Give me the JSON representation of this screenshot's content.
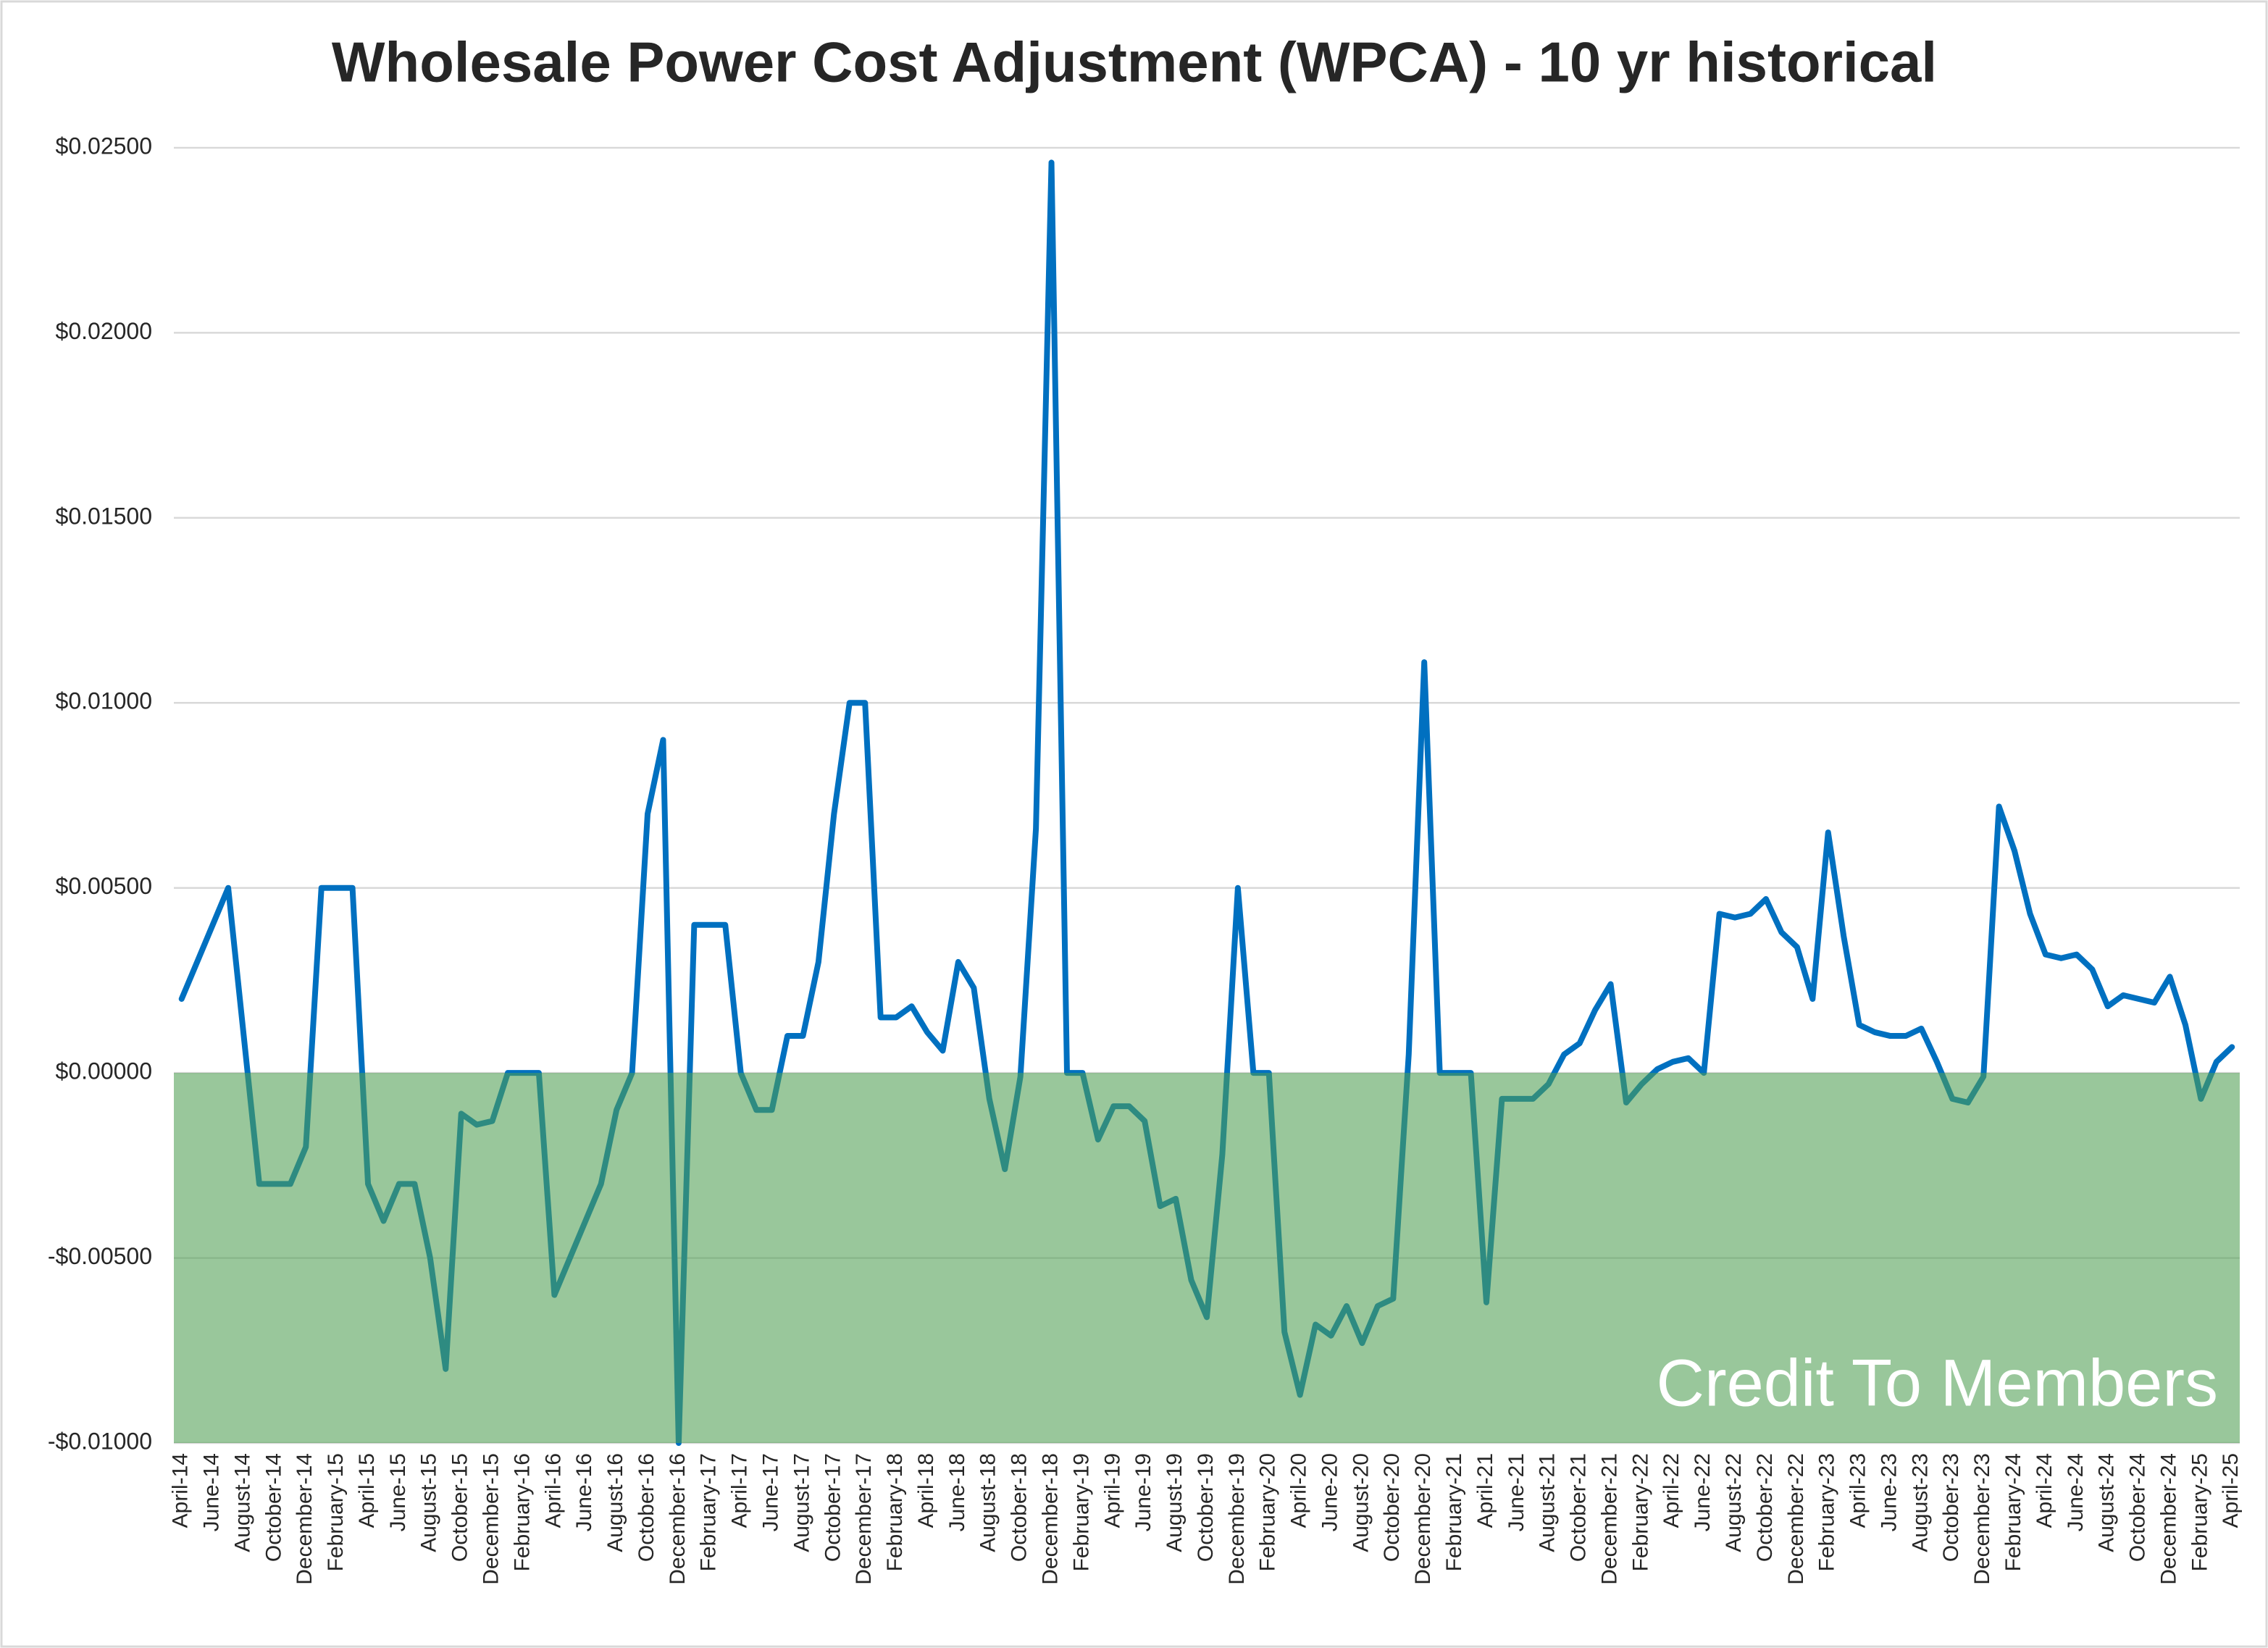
{
  "chart_data": {
    "type": "line",
    "title": "Wholesale Power Cost Adjustment (WPCA) - 10 yr historical",
    "categories": [
      "April-14",
      null,
      "June-14",
      null,
      "August-14",
      null,
      "October-14",
      null,
      "December-14",
      null,
      "February-15",
      null,
      "April-15",
      null,
      "June-15",
      null,
      "August-15",
      null,
      "October-15",
      null,
      "December-15",
      null,
      "February-16",
      null,
      "April-16",
      null,
      "June-16",
      null,
      "August-16",
      null,
      "October-16",
      null,
      "December-16",
      null,
      "February-17",
      null,
      "April-17",
      null,
      "June-17",
      null,
      "August-17",
      null,
      "October-17",
      null,
      "December-17",
      null,
      "February-18",
      null,
      "April-18",
      null,
      "June-18",
      null,
      "August-18",
      null,
      "October-18",
      null,
      "December-18",
      null,
      "February-19",
      null,
      "April-19",
      null,
      "June-19",
      null,
      "August-19",
      null,
      "October-19",
      null,
      "December-19",
      null,
      "February-20",
      null,
      "April-20",
      null,
      "June-20",
      null,
      "August-20",
      null,
      "October-20",
      null,
      "December-20",
      null,
      "February-21",
      null,
      "April-21",
      null,
      "June-21",
      null,
      "August-21",
      null,
      "October-21",
      null,
      "December-21",
      null,
      "February-22",
      null,
      "April-22",
      null,
      "June-22",
      null,
      "August-22",
      null,
      "October-22",
      null,
      "December-22",
      null,
      "February-23",
      null,
      "April-23",
      null,
      "June-23",
      null,
      "August-23",
      null,
      "October-23",
      null,
      "December-23",
      null,
      "February-24",
      null,
      "April-24",
      null,
      "June-24",
      null,
      "August-24",
      null,
      "October-24",
      null,
      "December-24",
      null,
      "February-25",
      null,
      "April-25"
    ],
    "series": [
      {
        "name": "WPCA",
        "color": "#0070c0",
        "values": [
          0.002,
          0.003,
          0.004,
          0.005,
          0.001,
          -0.003,
          -0.003,
          -0.003,
          -0.002,
          0.005,
          0.005,
          0.005,
          -0.003,
          -0.004,
          -0.003,
          -0.003,
          -0.005,
          -0.008,
          -0.0011,
          -0.0014,
          -0.0013,
          0,
          0,
          0,
          -0.006,
          -0.005,
          -0.004,
          -0.003,
          -0.001,
          0,
          0.007,
          0.009,
          -0.01,
          0.004,
          0.004,
          0.004,
          0,
          -0.001,
          -0.001,
          0.001,
          0.001,
          0.003,
          0.007,
          0.01,
          0.01,
          0.0015,
          0.0015,
          0.0018,
          0.0011,
          0.0006,
          0.003,
          0.0023,
          -0.0007,
          -0.0026,
          -0.0001,
          0.0066,
          0.0246,
          0,
          0,
          -0.0018,
          -0.0009,
          -0.0009,
          -0.0013,
          -0.0036,
          -0.0034,
          -0.0056,
          -0.0066,
          -0.0022,
          0.005,
          0,
          0,
          -0.007,
          -0.0087,
          -0.0068,
          -0.0071,
          -0.0063,
          -0.0073,
          -0.0063,
          -0.0061,
          0.0005,
          0.0111,
          0,
          0,
          0,
          -0.0062,
          -0.0007,
          -0.0007,
          -0.0007,
          -0.0003,
          0.0005,
          0.0008,
          0.0017,
          0.0024,
          -0.0008,
          -0.0003,
          0.0001,
          0.0003,
          0.0004,
          0,
          0.0043,
          0.0042,
          0.0043,
          0.0047,
          0.0038,
          0.0034,
          0.002,
          0.0065,
          0.0037,
          0.0013,
          0.0011,
          0.001,
          0.001,
          0.0012,
          0.0003,
          -0.0007,
          -0.0008,
          -0.0001,
          0.0072,
          0.006,
          0.0043,
          0.0032,
          0.0031,
          0.0032,
          0.0028,
          0.0018,
          0.0021,
          0.002,
          0.0019,
          0.0026,
          0.0013,
          -0.0007,
          0.0003,
          0.0007
        ]
      }
    ],
    "ylim": [
      -0.01,
      0.025
    ],
    "yticks": [
      {
        "value": -0.01,
        "label": "-$0.01000"
      },
      {
        "value": -0.005,
        "label": "-$0.00500"
      },
      {
        "value": 0,
        "label": "$0.00000"
      },
      {
        "value": 0.005,
        "label": "$0.00500"
      },
      {
        "value": 0.01,
        "label": "$0.01000"
      },
      {
        "value": 0.015,
        "label": "$0.01500"
      },
      {
        "value": 0.02,
        "label": "$0.02000"
      },
      {
        "value": 0.025,
        "label": "$0.02500"
      }
    ],
    "grid": true,
    "annotation": {
      "text": "Credit To Members",
      "color": "#4f9f52"
    }
  }
}
